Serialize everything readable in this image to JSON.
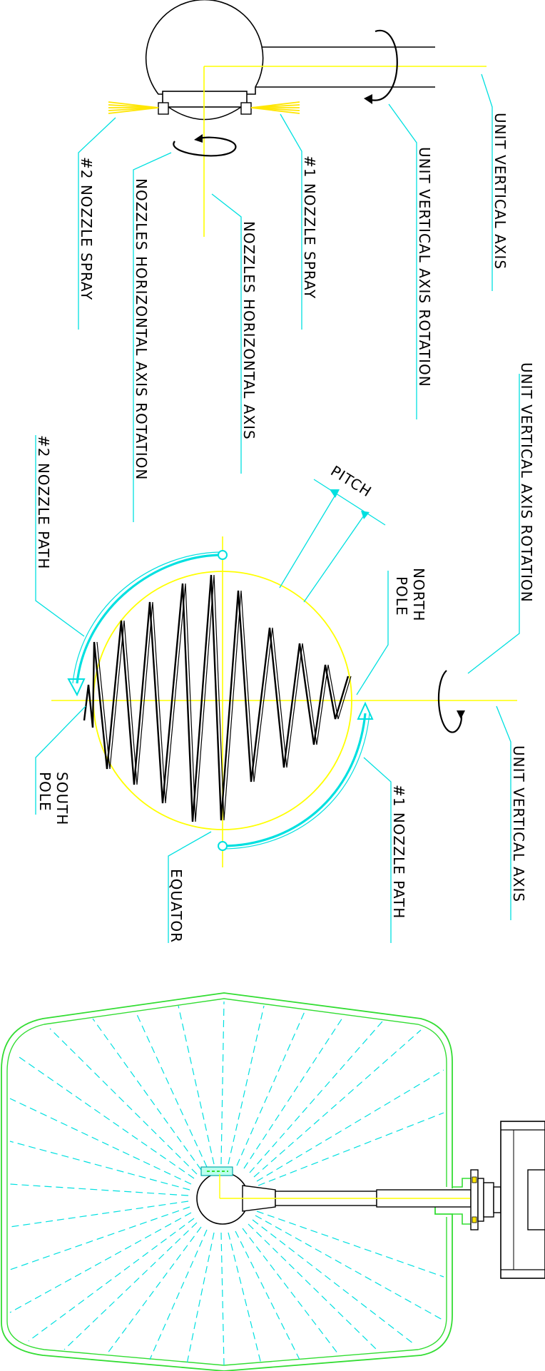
{
  "diagram": {
    "colors": {
      "leader": "#00e0e0",
      "axis": "#ffff00",
      "outline": "#000000",
      "vessel": "#33dd33",
      "spray": "#ffe600",
      "background": "#ffffff"
    },
    "labels": {
      "unit_vertical_axis_top": "UNIT VERTICAL AXIS",
      "unit_vertical_axis_rotation_top": "UNIT VERTICAL AXIS ROTATION",
      "nozzle1_spray": "#1 NOZZLE SPRAY",
      "nozzles_horizontal_axis": "NOZZLES HORIZONTAL AXIS",
      "nozzles_horizontal_axis_rotation": "NOZZLES HORIZONTAL AXIS ROTATION",
      "nozzle2_spray": "#2 NOZZLE SPRAY",
      "unit_vertical_axis_rotation_mid": "UNIT VERTICAL AXIS ROTATION",
      "unit_vertical_axis_mid": "UNIT VERTICAL AXIS",
      "nozzle1_path": "#1 NOZZLE PATH",
      "north_pole_line1": "NORTH",
      "north_pole_line2": "POLE",
      "pitch": "PITCH",
      "nozzle2_path": "#2 NOZZLE PATH",
      "south_pole_line1": "SOUTH",
      "south_pole_line2": "POLE",
      "equator": "EQUATOR"
    }
  }
}
